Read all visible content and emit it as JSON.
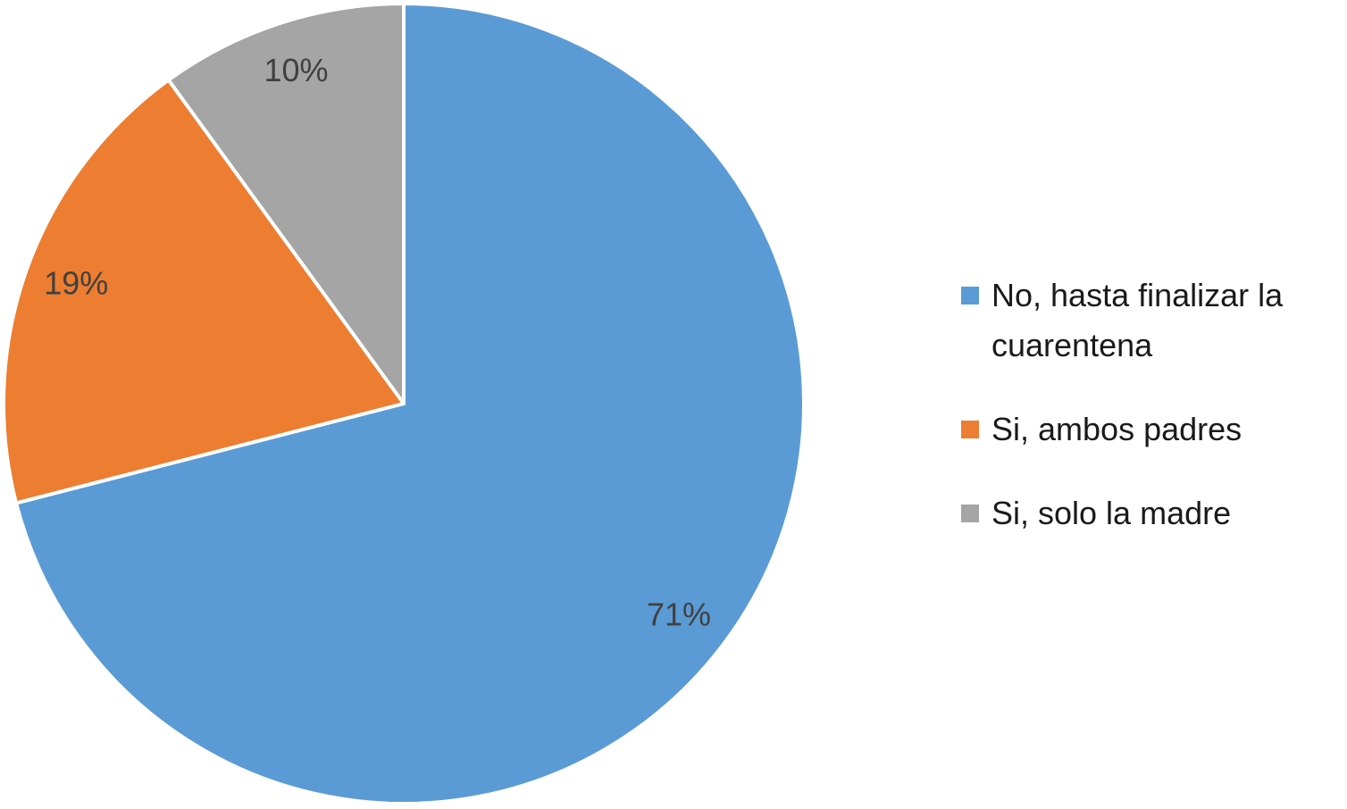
{
  "chart_data": {
    "type": "pie",
    "categories": [
      "No, hasta finalizar la cuarentena",
      "Si, ambos padres",
      "Si, solo la madre"
    ],
    "values": [
      71,
      19,
      10
    ],
    "value_labels": [
      "71%",
      "19%",
      "10%"
    ],
    "colors": [
      "#5b9bd5",
      "#ed7d31",
      "#a5a5a5"
    ],
    "legend": "right"
  }
}
